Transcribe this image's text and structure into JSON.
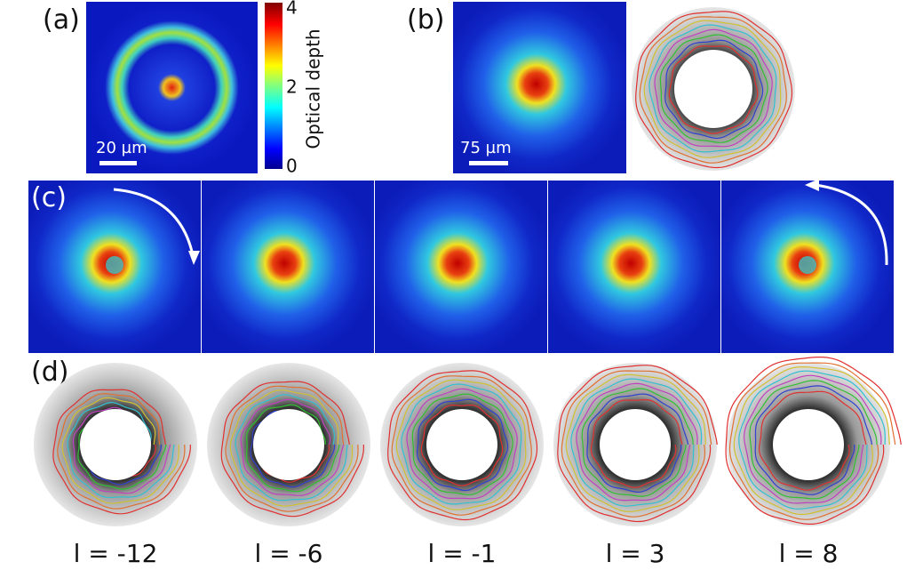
{
  "panel_a": {
    "label": "(a)",
    "scale_bar": "20 µm",
    "colorbar": {
      "title": "Optical depth",
      "ticks": [
        4,
        2,
        0
      ]
    }
  },
  "panel_b": {
    "label": "(b)",
    "scale_bar": "75 µm"
  },
  "panel_c": {
    "label": "(c)"
  },
  "panel_d": {
    "label": "(d)",
    "captions": [
      "l = -12",
      "l = -6",
      "l = -1",
      "l = 3",
      "l = 8"
    ]
  }
}
